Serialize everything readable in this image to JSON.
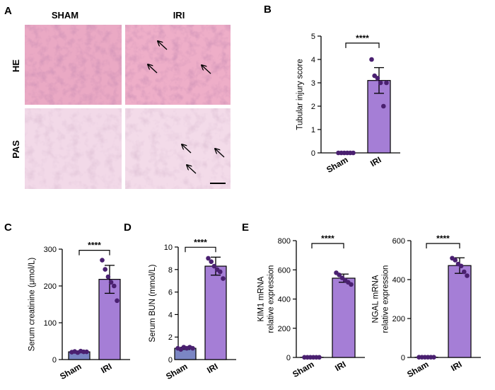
{
  "panels": {
    "A": {
      "letter": "A",
      "columns": [
        "SHAM",
        "IRI"
      ],
      "rows": [
        "HE",
        "PAS"
      ]
    }
  },
  "colors": {
    "sham_fill": "#7b86c4",
    "iri_fill": "#a57ed6",
    "point": "#4a2070",
    "axis": "#000000",
    "he_tissue": "#e9a4c0",
    "pas_tissue": "#f1d7e6"
  },
  "chart_data": [
    {
      "id": "B",
      "letter": "B",
      "type": "bar",
      "categories": [
        "Sham",
        "IRI"
      ],
      "values": [
        0,
        3.1
      ],
      "sd": [
        0,
        0.55
      ],
      "points": [
        [
          0,
          0,
          0,
          0,
          0,
          0
        ],
        [
          4.0,
          3.3,
          3.2,
          3.0,
          2.0,
          3.0
        ]
      ],
      "ylabel": "Tubular injury score",
      "ylim": [
        0,
        5
      ],
      "yticks": [
        0,
        1,
        2,
        3,
        4,
        5
      ],
      "significance": "****",
      "grid": false
    },
    {
      "id": "C",
      "letter": "C",
      "type": "bar",
      "categories": [
        "Sham",
        "IRI"
      ],
      "values": [
        21,
        218
      ],
      "sd": [
        2,
        38
      ],
      "points": [
        [
          20,
          22,
          19,
          23,
          21,
          21
        ],
        [
          270,
          245,
          225,
          210,
          200,
          160
        ]
      ],
      "ylabel": "Serum creatinine (μmol/L)",
      "ylim": [
        0,
        300
      ],
      "yticks": [
        0,
        100,
        200,
        300
      ],
      "significance": "****",
      "grid": false
    },
    {
      "id": "D",
      "letter": "D",
      "type": "bar",
      "categories": [
        "Sham",
        "IRI"
      ],
      "values": [
        1.0,
        8.3
      ],
      "sd": [
        0.1,
        0.8
      ],
      "points": [
        [
          1.0,
          0.9,
          1.1,
          1.0,
          1.1,
          1.0
        ],
        [
          9.0,
          8.7,
          8.3,
          8.0,
          7.8,
          7.2
        ]
      ],
      "ylabel": "Serum BUN (mmol/L)",
      "ylim": [
        0,
        10
      ],
      "yticks": [
        0,
        2,
        4,
        6,
        8,
        10
      ],
      "significance": "****",
      "grid": false
    },
    {
      "id": "E1",
      "letter": "E",
      "type": "bar",
      "categories": [
        "Sham",
        "IRI"
      ],
      "values": [
        1,
        543
      ],
      "sd": [
        0,
        28
      ],
      "points": [
        [
          1,
          1,
          1,
          1,
          1,
          1
        ],
        [
          580,
          565,
          545,
          530,
          515,
          500
        ]
      ],
      "ylabel": [
        "KIM1 mRNA",
        "relative expression"
      ],
      "ylim": [
        0,
        800
      ],
      "yticks": [
        0,
        200,
        400,
        600,
        800
      ],
      "significance": "****",
      "grid": false
    },
    {
      "id": "E2",
      "letter": "",
      "type": "bar",
      "categories": [
        "Sham",
        "IRI"
      ],
      "values": [
        1,
        472
      ],
      "sd": [
        0,
        40
      ],
      "points": [
        [
          1,
          1,
          1,
          1,
          1,
          1
        ],
        [
          510,
          500,
          480,
          470,
          440,
          420
        ]
      ],
      "ylabel": [
        "NGAL mRNA",
        "relative expression"
      ],
      "ylim": [
        0,
        600
      ],
      "yticks": [
        0,
        200,
        400,
        600
      ],
      "significance": "****",
      "grid": false
    }
  ]
}
